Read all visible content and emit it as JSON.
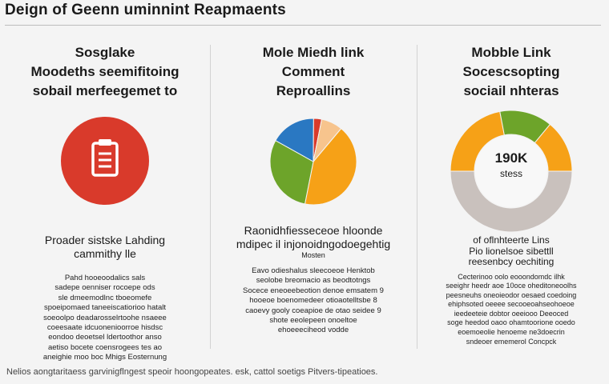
{
  "title": "Deign of Geenn uminnint Reapmaents",
  "colors": {
    "red": "#d93a2b",
    "blue": "#2a78c2",
    "green": "#6da42a",
    "orange": "#f6a117",
    "peach": "#f7c48d",
    "grey": "#c9c1bd"
  },
  "columns": [
    {
      "heading": [
        "Sosglake",
        "Moodeths seemifitoing",
        "sobail merfeegemet to"
      ],
      "icon": "clipboard-icon",
      "sub_heading": [
        "Proader sistske Lahding",
        "cammithy lle"
      ],
      "body": [
        "Pahd hooeoodalics sals",
        "sadepe oenniser rocoepe ods",
        "sle dmeemodlnc tboeomefe",
        "spoeipomaed taneeiscatiorioo hatalt",
        "soeoolpo deadarosselrtoohe nsaeee",
        "coeesaate idcuonenioorroe hisdsc",
        "eondoo deoetsel ldertoothor anso",
        "aetiso bocete coensrogees tes ao",
        "aneighie moo boc Mhigs Eosternung"
      ]
    },
    {
      "heading": [
        "Mole Miedh link",
        "Comment",
        "Reproallins"
      ],
      "sub_heading": [
        "Raonidhfiesseceoe hloonde",
        "mdipec il injonoidngodoegehtig"
      ],
      "small_heading": "Mosten",
      "body": [
        "Eavo odieshalus sleecoeoe Henktob",
        "seolobe breomacio as beodtotngs",
        "Socece eneoeebeotion denoe emsatem 9",
        "hooeoe boenomedeer otioaotelltsbe 8",
        "caoevy gooly coeapioe de otao seidee 9",
        "shote eeolepeen onoeltoe",
        "ehoeeeciheod vodde"
      ]
    },
    {
      "heading": [
        "Mobble Link",
        "Socescsopting",
        "sociail nhteras"
      ],
      "sub_heading": [
        "of oflnhteerte Lins",
        "Pio lionelsoe sibettll",
        "reesenbcy oechiting"
      ],
      "body": [
        "Cecterinoo oolo eooondomdc ilhk",
        "seeighr heedr aoe 10oce oheditoneoolhs",
        "peesneuhs oneoieodor oesaed coedoing",
        "ehiphsoted oeeee secooeoahseohoeoe",
        "ieedeeteie dobtor oeeiooo Deeoced",
        "soge heedod oaoo ohamtoorione ooedo",
        "eoemoeolie henoeme ne3doecrin",
        "sndeoer ememerol Concpck"
      ]
    }
  ],
  "chart_data": [
    {
      "type": "pie",
      "title": "Mole Miedh link Comment Reproallins",
      "labels": [
        "Orange",
        "Green",
        "Blue",
        "Red",
        "Peach"
      ],
      "values": [
        42,
        30,
        17,
        3,
        8
      ],
      "series_colors": [
        "#f6a117",
        "#6da42a",
        "#2a78c2",
        "#d93a2b",
        "#f7c48d"
      ]
    },
    {
      "type": "pie",
      "donut": true,
      "title": "Mobble Link Socescsopting sociail nhteras",
      "center_value": "190K",
      "center_label": "stess",
      "labels": [
        "Orange left",
        "Green",
        "Orange right",
        "Grey"
      ],
      "values": [
        22,
        14,
        14,
        50
      ],
      "series_colors": [
        "#f6a117",
        "#6da42a",
        "#f6a117",
        "#c9c1bd"
      ]
    }
  ],
  "footer": "Nelios aongtaritaess garvinigflngest speoir hoongopeates. esk, cattol soetigs Pitvers-tipeatioes."
}
